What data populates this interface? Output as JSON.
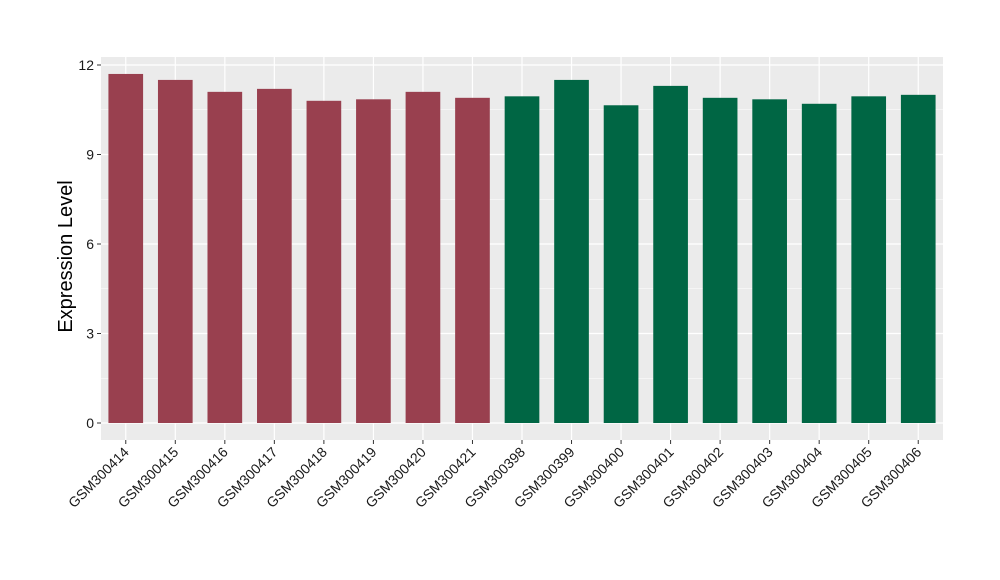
{
  "chart_data": {
    "type": "bar",
    "title": "",
    "xlabel": "",
    "ylabel": "Expression Level",
    "ylim": [
      0,
      12.6
    ],
    "yticks": [
      0,
      3,
      6,
      9,
      12
    ],
    "grid": true,
    "legend": "none",
    "panel_background": "#ebebeb",
    "grid_color": "#ffffff",
    "categories": [
      "GSM300414",
      "GSM300415",
      "GSM300416",
      "GSM300417",
      "GSM300418",
      "GSM300419",
      "GSM300420",
      "GSM300421",
      "GSM300398",
      "GSM300399",
      "GSM300400",
      "GSM300401",
      "GSM300402",
      "GSM300403",
      "GSM300404",
      "GSM300405",
      "GSM300406"
    ],
    "values": [
      11.7,
      11.5,
      11.1,
      11.2,
      10.8,
      10.85,
      11.1,
      10.9,
      10.95,
      11.5,
      10.65,
      11.3,
      10.9,
      10.85,
      10.7,
      10.95,
      11.0
    ],
    "groups": [
      {
        "color": "#99404f",
        "categories": [
          "GSM300414",
          "GSM300415",
          "GSM300416",
          "GSM300417",
          "GSM300418",
          "GSM300419",
          "GSM300420",
          "GSM300421"
        ]
      },
      {
        "color": "#006644",
        "categories": [
          "GSM300398",
          "GSM300399",
          "GSM300400",
          "GSM300401",
          "GSM300402",
          "GSM300403",
          "GSM300404",
          "GSM300405",
          "GSM300406"
        ]
      }
    ]
  }
}
